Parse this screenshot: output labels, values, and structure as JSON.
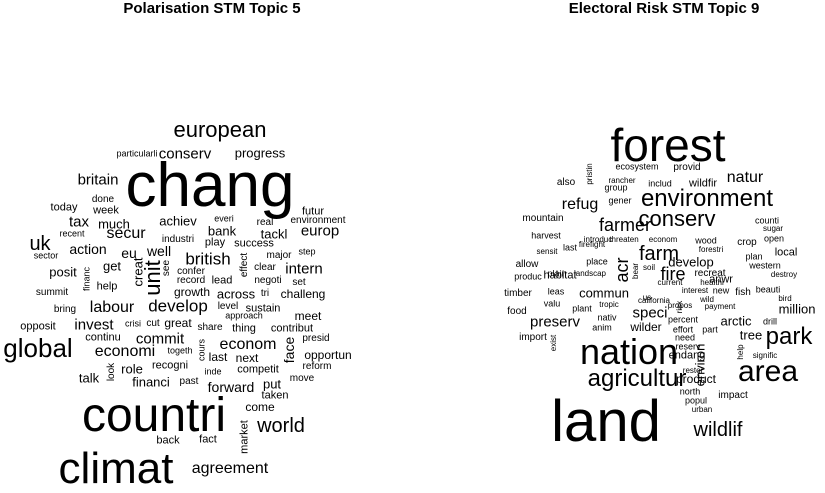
{
  "panels": [
    {
      "title": "Polarisation STM Topic 5",
      "words": [
        {
          "t": "chang"
        },
        {
          "t": "countri"
        },
        {
          "t": "climat"
        },
        {
          "t": "global"
        },
        {
          "t": "european"
        },
        {
          "t": "world"
        },
        {
          "t": "unit"
        },
        {
          "t": "develop"
        },
        {
          "t": "british"
        },
        {
          "t": "labour"
        },
        {
          "t": "economi"
        },
        {
          "t": "econom"
        },
        {
          "t": "invest"
        },
        {
          "t": "agreement"
        },
        {
          "t": "secur"
        },
        {
          "t": "intern"
        },
        {
          "t": "conserv"
        },
        {
          "t": "uk"
        },
        {
          "t": "britain"
        },
        {
          "t": "tax"
        },
        {
          "t": "progress"
        },
        {
          "t": "europ"
        },
        {
          "t": "commit"
        },
        {
          "t": "forward"
        },
        {
          "t": "achiev"
        },
        {
          "t": "bank"
        },
        {
          "t": "tackl"
        },
        {
          "t": "eu"
        },
        {
          "t": "well"
        },
        {
          "t": "action"
        },
        {
          "t": "much"
        },
        {
          "t": "posit"
        },
        {
          "t": "get"
        },
        {
          "t": "across"
        },
        {
          "t": "challeng"
        },
        {
          "t": "meet"
        },
        {
          "t": "face"
        },
        {
          "t": "opportun"
        },
        {
          "t": "financi"
        },
        {
          "t": "talk"
        },
        {
          "t": "role"
        },
        {
          "t": "next"
        },
        {
          "t": "last"
        },
        {
          "t": "put"
        },
        {
          "t": "come"
        },
        {
          "t": "fact"
        },
        {
          "t": "back"
        },
        {
          "t": "creat"
        },
        {
          "t": "growth"
        },
        {
          "t": "great"
        },
        {
          "t": "continu"
        },
        {
          "t": "recogni"
        },
        {
          "t": "sustain"
        },
        {
          "t": "market"
        },
        {
          "t": "success"
        },
        {
          "t": "play"
        },
        {
          "t": "today"
        },
        {
          "t": "week"
        },
        {
          "t": "done"
        },
        {
          "t": "futur"
        },
        {
          "t": "real"
        },
        {
          "t": "environment"
        },
        {
          "t": "everi"
        },
        {
          "t": "industri"
        },
        {
          "t": "recent"
        },
        {
          "t": "sector"
        },
        {
          "t": "particularli"
        },
        {
          "t": "see"
        },
        {
          "t": "record"
        },
        {
          "t": "lead"
        },
        {
          "t": "confer"
        },
        {
          "t": "clear"
        },
        {
          "t": "negoti"
        },
        {
          "t": "major"
        },
        {
          "t": "step"
        },
        {
          "t": "effect"
        },
        {
          "t": "summit"
        },
        {
          "t": "help"
        },
        {
          "t": "financ"
        },
        {
          "t": "bring"
        },
        {
          "t": "opposit"
        },
        {
          "t": "crisi"
        },
        {
          "t": "cut"
        },
        {
          "t": "thing"
        },
        {
          "t": "share"
        },
        {
          "t": "contribut"
        },
        {
          "t": "presid"
        },
        {
          "t": "reform"
        },
        {
          "t": "move"
        },
        {
          "t": "togeth"
        },
        {
          "t": "cours"
        },
        {
          "t": "inde"
        },
        {
          "t": "past"
        },
        {
          "t": "competit"
        },
        {
          "t": "taken"
        },
        {
          "t": "look"
        },
        {
          "t": "approach"
        },
        {
          "t": "level"
        },
        {
          "t": "tri"
        },
        {
          "t": "set"
        }
      ]
    },
    {
      "title": "Electoral Risk STM Topic 9",
      "words": [
        {
          "t": "forest"
        },
        {
          "t": "land"
        },
        {
          "t": "nation"
        },
        {
          "t": "environment"
        },
        {
          "t": "agricultur"
        },
        {
          "t": "area"
        },
        {
          "t": "park"
        },
        {
          "t": "conserv"
        },
        {
          "t": "farm"
        },
        {
          "t": "farmer"
        },
        {
          "t": "wildlif"
        },
        {
          "t": "fire"
        },
        {
          "t": "acr"
        },
        {
          "t": "refug"
        },
        {
          "t": "natur"
        },
        {
          "t": "speci"
        },
        {
          "t": "preserv"
        },
        {
          "t": "commun"
        },
        {
          "t": "develop"
        },
        {
          "t": "million"
        },
        {
          "t": "arctic"
        },
        {
          "t": "tree"
        },
        {
          "t": "endang"
        },
        {
          "t": "product"
        },
        {
          "t": "environ"
        },
        {
          "t": "wilder"
        },
        {
          "t": "habitat"
        },
        {
          "t": "local"
        },
        {
          "t": "crop"
        },
        {
          "t": "wildfir"
        },
        {
          "t": "provid"
        },
        {
          "t": "also"
        },
        {
          "t": "group"
        },
        {
          "t": "includ"
        },
        {
          "t": "rancher"
        },
        {
          "t": "gener"
        },
        {
          "t": "ecosystem"
        },
        {
          "t": "pristin"
        },
        {
          "t": "counti"
        },
        {
          "t": "sugar"
        },
        {
          "t": "open"
        },
        {
          "t": "plan"
        },
        {
          "t": "western"
        },
        {
          "t": "destroy"
        },
        {
          "t": "anwr"
        },
        {
          "t": "fish"
        },
        {
          "t": "beauti"
        },
        {
          "t": "bird"
        },
        {
          "t": "drill"
        },
        {
          "t": "signific"
        },
        {
          "t": "help"
        },
        {
          "t": "impact"
        },
        {
          "t": "urban"
        },
        {
          "t": "popul"
        },
        {
          "t": "north"
        },
        {
          "t": "restor"
        },
        {
          "t": "reserv"
        },
        {
          "t": "need"
        },
        {
          "t": "effort"
        },
        {
          "t": "part"
        },
        {
          "t": "percent"
        },
        {
          "t": "mountain"
        },
        {
          "t": "harvest"
        },
        {
          "t": "firefight"
        },
        {
          "t": "introduc"
        },
        {
          "t": "threaten"
        },
        {
          "t": "econom"
        },
        {
          "t": "wood"
        },
        {
          "t": "forestri"
        },
        {
          "t": "sensit"
        },
        {
          "t": "last"
        },
        {
          "t": "place"
        },
        {
          "t": "allow"
        },
        {
          "t": "plain"
        },
        {
          "t": "landscap"
        },
        {
          "t": "bear"
        },
        {
          "t": "soil"
        },
        {
          "t": "recreat"
        },
        {
          "t": "current"
        },
        {
          "t": "healthi"
        },
        {
          "t": "produc"
        },
        {
          "t": "timber"
        },
        {
          "t": "leas"
        },
        {
          "t": "valu"
        },
        {
          "t": "plant"
        },
        {
          "t": "tropic"
        },
        {
          "t": "us"
        },
        {
          "t": "california"
        },
        {
          "t": "propos"
        },
        {
          "t": "wild"
        },
        {
          "t": "interest"
        },
        {
          "t": "new"
        },
        {
          "t": "payment"
        },
        {
          "t": "food"
        },
        {
          "t": "import"
        },
        {
          "t": "nativ"
        },
        {
          "t": "anim"
        },
        {
          "t": "exist"
        },
        {
          "t": "risk"
        }
      ]
    }
  ]
}
